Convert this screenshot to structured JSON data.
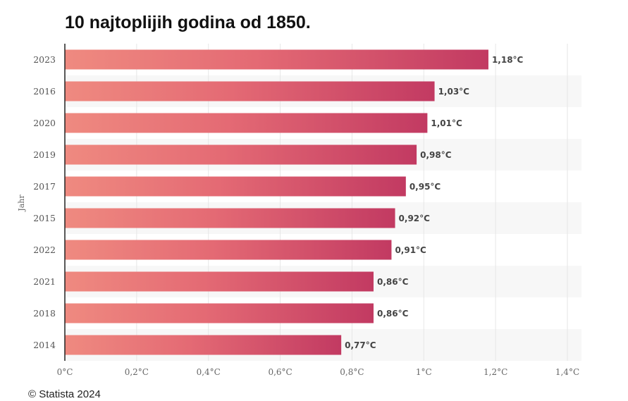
{
  "title": "10 najtoplijih godina od 1850.",
  "credit": "© Statista 2024",
  "chart_data": {
    "type": "bar",
    "orientation": "horizontal",
    "title": "10 najtoplijih godina od 1850.",
    "ylabel": "Jahr",
    "xlabel": "",
    "categories": [
      "2023",
      "2016",
      "2020",
      "2019",
      "2017",
      "2015",
      "2022",
      "2021",
      "2018",
      "2014"
    ],
    "values": [
      1.18,
      1.03,
      1.01,
      0.98,
      0.95,
      0.92,
      0.91,
      0.86,
      0.86,
      0.77
    ],
    "value_labels": [
      "1,18°C",
      "1,03°C",
      "1,01°C",
      "0,98°C",
      "0,95°C",
      "0,92°C",
      "0,91°C",
      "0,86°C",
      "0,86°C",
      "0,77°C"
    ],
    "xlim": [
      0,
      1.4
    ],
    "xticks": [
      0,
      0.2,
      0.4,
      0.6,
      0.8,
      1.0,
      1.2,
      1.4
    ],
    "xtick_labels": [
      "0°C",
      "0,2°C",
      "0,4°C",
      "0,6°C",
      "0,8°C",
      "1°C",
      "1,2°C",
      "1,4°C"
    ],
    "grid": true,
    "colors": {
      "bar_start": "#ef8a80",
      "bar_mid": "#e46a74",
      "bar_end": "#c23a62",
      "grid": "#e6e6e6",
      "stripe": "#f7f7f7",
      "axis": "#222222"
    }
  }
}
